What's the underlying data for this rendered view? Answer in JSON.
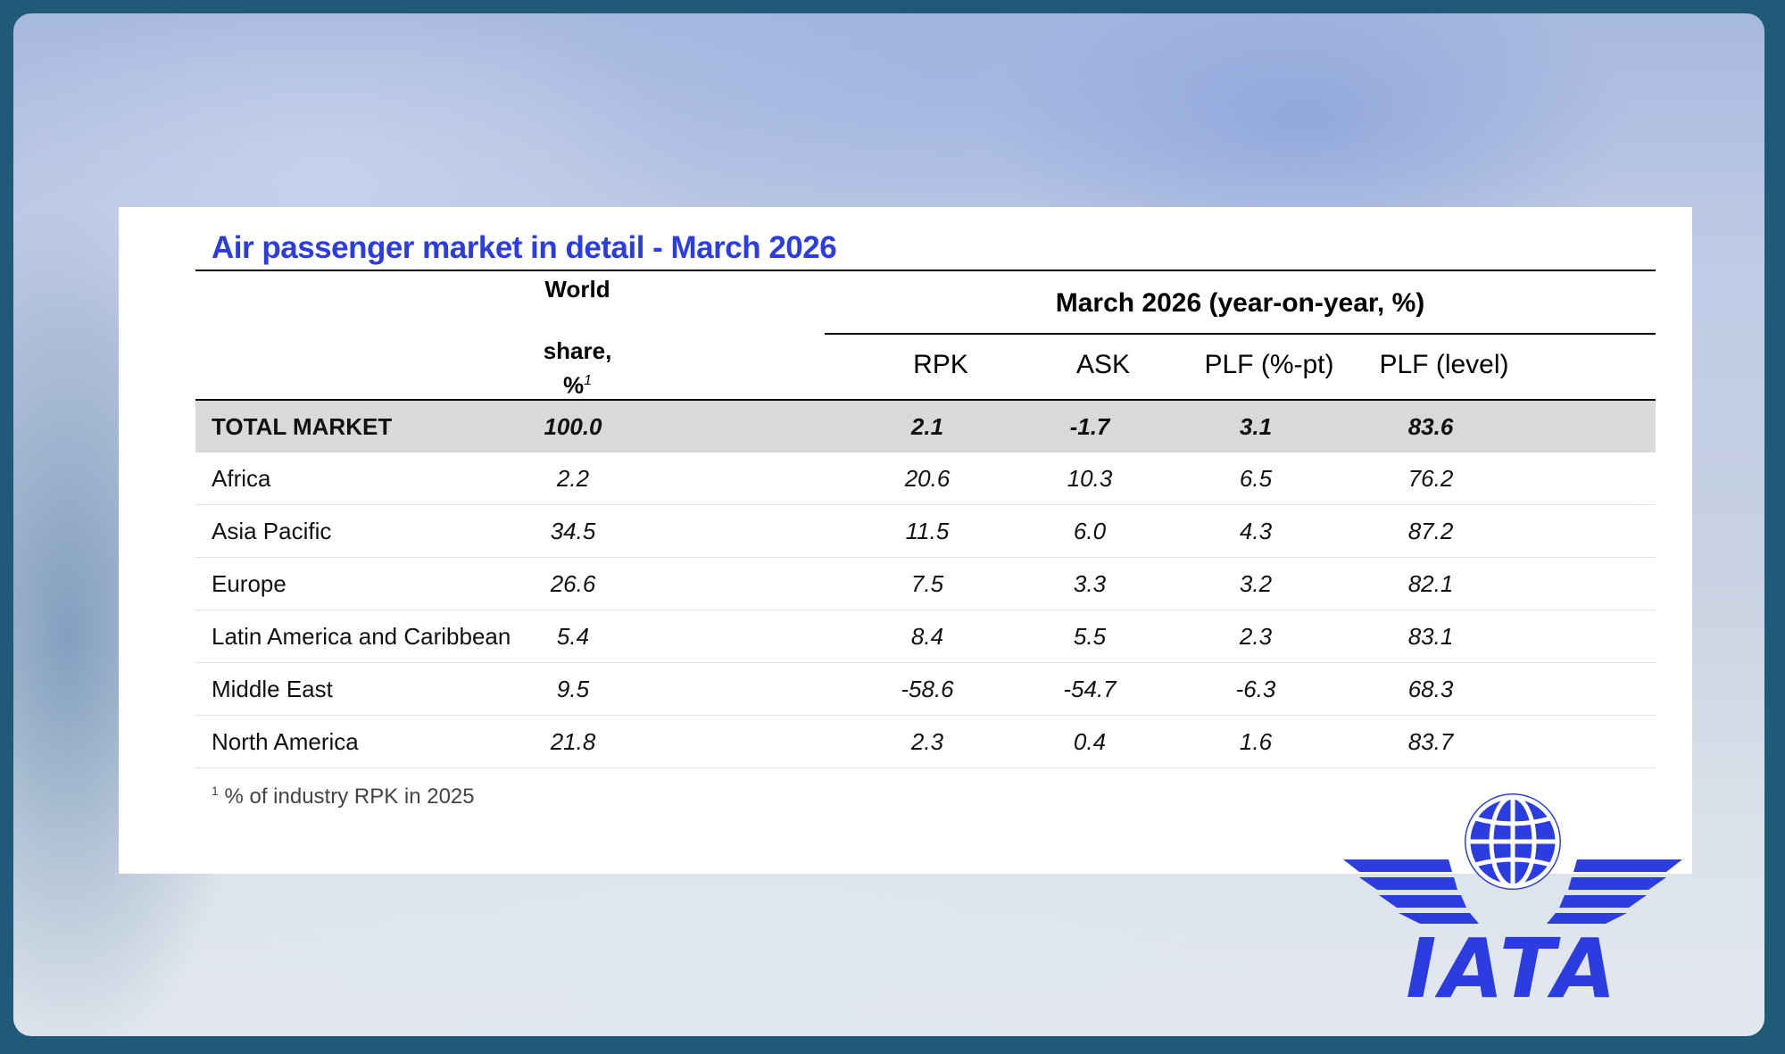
{
  "title": "Air passenger market in detail - March 2026",
  "header": {
    "world_line1": "World",
    "world_line2": "share,",
    "world_line3": "%",
    "world_sup": "1",
    "group": "March 2026 (year-on-year, %)",
    "columns": [
      "RPK",
      "ASK",
      "PLF (%-pt)",
      "PLF (level)"
    ]
  },
  "rows": [
    {
      "label": "TOTAL MARKET",
      "share": "100.0",
      "rpk": "2.1",
      "ask": "-1.7",
      "plf_pt": "3.1",
      "plf_level": "83.6"
    },
    {
      "label": "Africa",
      "share": "2.2",
      "rpk": "20.6",
      "ask": "10.3",
      "plf_pt": "6.5",
      "plf_level": "76.2"
    },
    {
      "label": "Asia Pacific",
      "share": "34.5",
      "rpk": "11.5",
      "ask": "6.0",
      "plf_pt": "4.3",
      "plf_level": "87.2"
    },
    {
      "label": "Europe",
      "share": "26.6",
      "rpk": "7.5",
      "ask": "3.3",
      "plf_pt": "3.2",
      "plf_level": "82.1"
    },
    {
      "label": "Latin America and Caribbean",
      "share": "5.4",
      "rpk": "8.4",
      "ask": "5.5",
      "plf_pt": "2.3",
      "plf_level": "83.1"
    },
    {
      "label": "Middle East",
      "share": "9.5",
      "rpk": "-58.6",
      "ask": "-54.7",
      "plf_pt": "-6.3",
      "plf_level": "68.3"
    },
    {
      "label": "North America",
      "share": "21.8",
      "rpk": "2.3",
      "ask": "0.4",
      "plf_pt": "1.6",
      "plf_level": "83.7"
    }
  ],
  "footnote": {
    "sup": "1",
    "text": "% of industry RPK in 2025"
  },
  "logo": {
    "text": "IATA",
    "color": "#2b3de0"
  },
  "colors": {
    "title": "#2b3de0",
    "total_row_bg": "#d9d9d9",
    "frame": "#1f5a78"
  }
}
